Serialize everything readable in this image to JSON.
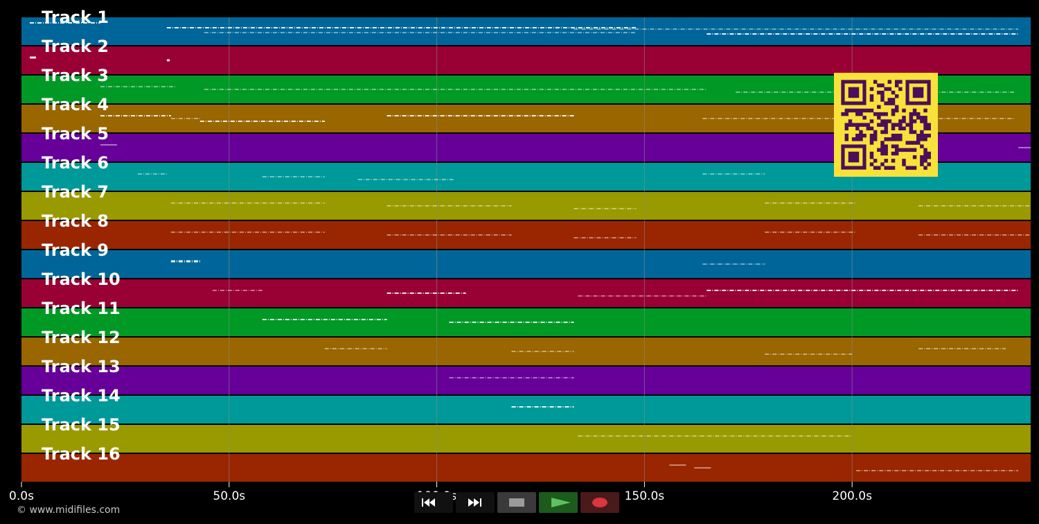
{
  "tracks": [
    {
      "label": "Track 1",
      "color": "#006699"
    },
    {
      "label": "Track 2",
      "color": "#990033"
    },
    {
      "label": "Track 3",
      "color": "#009926"
    },
    {
      "label": "Track 4",
      "color": "#996600"
    },
    {
      "label": "Track 5",
      "color": "#660099"
    },
    {
      "label": "Track 6",
      "color": "#009999"
    },
    {
      "label": "Track 7",
      "color": "#999900"
    },
    {
      "label": "Track 8",
      "color": "#992600"
    },
    {
      "label": "Track 9",
      "color": "#006699"
    },
    {
      "label": "Track 10",
      "color": "#990033"
    },
    {
      "label": "Track 11",
      "color": "#009926"
    },
    {
      "label": "Track 12",
      "color": "#996600"
    },
    {
      "label": "Track 13",
      "color": "#660099"
    },
    {
      "label": "Track 14",
      "color": "#009999"
    },
    {
      "label": "Track 15",
      "color": "#999900"
    },
    {
      "label": "Track 16",
      "color": "#992600"
    }
  ],
  "axis": {
    "start": 0,
    "end": 243,
    "ticks": [
      {
        "value": 0,
        "label": "0.0s"
      },
      {
        "value": 50,
        "label": "50.0s"
      },
      {
        "value": 100,
        "label": "100.0s"
      },
      {
        "value": 150,
        "label": "150.0s"
      },
      {
        "value": 200,
        "label": "200.0s"
      }
    ]
  },
  "notes": [
    {
      "track": 0,
      "segments": [
        [
          2,
          19,
          2
        ],
        [
          35,
          148,
          2
        ],
        [
          44,
          148,
          1
        ],
        [
          133,
          240,
          1
        ],
        [
          165,
          240,
          2
        ]
      ]
    },
    {
      "track": 1,
      "segments": [
        [
          2,
          3.5,
          3
        ],
        [
          35,
          35.7,
          3
        ]
      ]
    },
    {
      "track": 2,
      "segments": [
        [
          19,
          37,
          1
        ],
        [
          44,
          165,
          1
        ],
        [
          172,
          239,
          1
        ]
      ]
    },
    {
      "track": 3,
      "segments": [
        [
          19,
          36,
          2
        ],
        [
          36,
          43,
          1
        ],
        [
          43,
          73,
          2
        ],
        [
          88,
          133,
          2
        ],
        [
          164,
          239,
          1
        ]
      ]
    },
    {
      "track": 4,
      "segments": [
        [
          19,
          23,
          1
        ],
        [
          240,
          243,
          1
        ]
      ]
    },
    {
      "track": 5,
      "segments": [
        [
          28,
          35,
          1
        ],
        [
          58,
          73,
          1
        ],
        [
          81,
          104,
          1
        ],
        [
          164,
          179,
          1
        ]
      ]
    },
    {
      "track": 6,
      "segments": [
        [
          36,
          73,
          1
        ],
        [
          88,
          118,
          1
        ],
        [
          133,
          148,
          1
        ],
        [
          179,
          201,
          1
        ],
        [
          216,
          243,
          1
        ]
      ]
    },
    {
      "track": 7,
      "segments": [
        [
          36,
          73,
          1
        ],
        [
          88,
          118,
          1
        ],
        [
          133,
          148,
          1
        ],
        [
          179,
          201,
          1
        ],
        [
          216,
          243,
          1
        ]
      ]
    },
    {
      "track": 8,
      "segments": [
        [
          36,
          43,
          3
        ],
        [
          164,
          179,
          1
        ]
      ]
    },
    {
      "track": 9,
      "segments": [
        [
          46,
          58,
          1
        ],
        [
          88,
          107,
          2
        ],
        [
          134,
          165,
          1
        ],
        [
          165,
          240,
          2
        ]
      ]
    },
    {
      "track": 10,
      "segments": [
        [
          58,
          88,
          2
        ],
        [
          103,
          133,
          2
        ]
      ]
    },
    {
      "track": 11,
      "segments": [
        [
          73,
          88,
          1
        ],
        [
          118,
          133,
          1
        ],
        [
          179,
          200,
          1
        ],
        [
          216,
          237,
          1
        ]
      ]
    },
    {
      "track": 12,
      "segments": [
        [
          103,
          133,
          1
        ]
      ]
    },
    {
      "track": 13,
      "segments": [
        [
          118,
          133,
          2
        ]
      ]
    },
    {
      "track": 14,
      "segments": [
        [
          134,
          200,
          1
        ]
      ]
    },
    {
      "track": 15,
      "segments": [
        [
          156,
          160,
          1
        ],
        [
          162,
          166,
          1
        ],
        [
          201,
          240,
          1
        ]
      ]
    }
  ],
  "copyright": "© www.midifiles.com",
  "transport": [
    {
      "name": "rewind-button",
      "icon": "rewind-icon",
      "active": false
    },
    {
      "name": "fast-forward-button",
      "icon": "fast-forward-icon",
      "active": false
    },
    {
      "name": "stop-button",
      "icon": "stop-icon",
      "active": false
    },
    {
      "name": "play-button",
      "icon": "play-icon",
      "active": true
    },
    {
      "name": "record-button",
      "icon": "record-icon",
      "active": false
    }
  ],
  "colors": {
    "background": "#000000",
    "grid": "#8a8a8a",
    "note": "#ffffff",
    "qr_fg": "#4a0f5a",
    "qr_bg": "#f8e23a",
    "play_bg": "#1d5a1d",
    "play": "#5fc15f",
    "record_bg": "#4a1a1a",
    "record": "#d9363e",
    "button_bg": "#111111",
    "stop": "#9b9b9b"
  }
}
